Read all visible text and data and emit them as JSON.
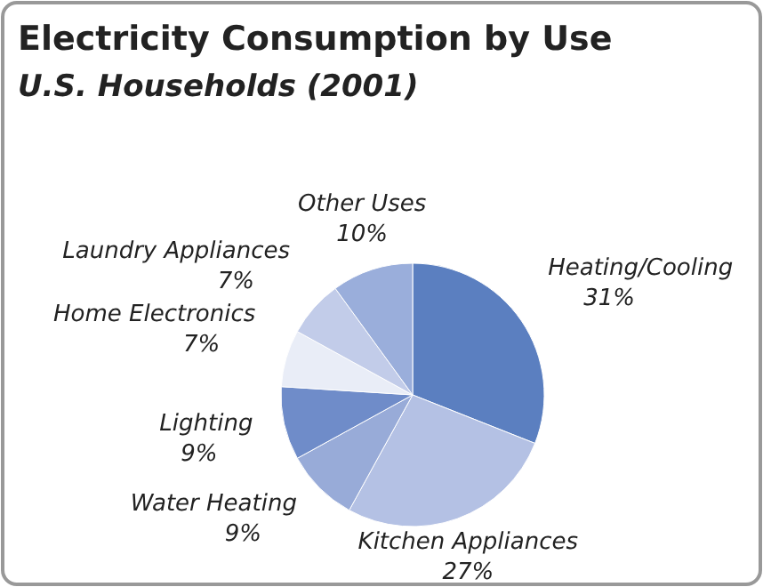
{
  "chart_data": {
    "type": "pie",
    "title": "Electricity Consumption by Use",
    "subtitle": "U.S. Households (2001)",
    "categories": [
      "Heating/Cooling",
      "Kitchen Appliances",
      "Water Heating",
      "Lighting",
      "Home Electronics",
      "Laundry Appliances",
      "Other Uses"
    ],
    "values": [
      31,
      27,
      9,
      9,
      7,
      7,
      10
    ],
    "value_labels": [
      "31%",
      "27%",
      "9%",
      "9%",
      "7%",
      "7%",
      "10%"
    ],
    "colors": [
      "#5b7fc0",
      "#b4c1e4",
      "#98abd8",
      "#6f8cc9",
      "#e9edf7",
      "#c2cce9",
      "#9aaedb"
    ]
  }
}
